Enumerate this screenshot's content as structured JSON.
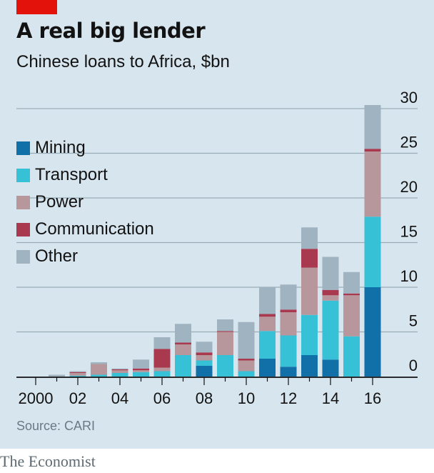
{
  "header": {
    "title": "A real big lender",
    "subtitle": "Chinese loans to Africa, $bn"
  },
  "source": "Source: CARI",
  "footer": "The Economist",
  "colors": {
    "background": "#d7e5ee",
    "brand_red": "#e3120b",
    "gridline": "#98adb8"
  },
  "chart_data": {
    "type": "bar",
    "stacked": true,
    "title": "A real big lender",
    "subtitle": "Chinese loans to Africa, $bn",
    "xlabel": "",
    "ylabel": "",
    "ylim": [
      0,
      30
    ],
    "yticks": [
      0,
      5,
      10,
      15,
      20,
      25,
      30
    ],
    "y_axis_side": "right",
    "grid": true,
    "legend_position": "top-left",
    "categories": [
      "2000",
      "2001",
      "2002",
      "2003",
      "2004",
      "2005",
      "2006",
      "2007",
      "2008",
      "2009",
      "2010",
      "2011",
      "2012",
      "2013",
      "2014",
      "2015",
      "2016"
    ],
    "xtick_labels": [
      {
        "category": "2000",
        "label": "2000"
      },
      {
        "category": "2002",
        "label": "02"
      },
      {
        "category": "2004",
        "label": "04"
      },
      {
        "category": "2006",
        "label": "06"
      },
      {
        "category": "2008",
        "label": "08"
      },
      {
        "category": "2010",
        "label": "10"
      },
      {
        "category": "2012",
        "label": "12"
      },
      {
        "category": "2014",
        "label": "14"
      },
      {
        "category": "2016",
        "label": "16"
      }
    ],
    "series": [
      {
        "name": "Mining",
        "color": "#1270a8",
        "values": [
          0,
          0,
          0,
          0,
          0,
          0,
          0,
          0,
          1.2,
          0,
          0,
          2.0,
          1.1,
          2.4,
          1.9,
          0,
          10.0
        ]
      },
      {
        "name": "Transport",
        "color": "#36c1d6",
        "values": [
          0,
          0,
          0.1,
          0.2,
          0.4,
          0.5,
          0.6,
          2.4,
          0.6,
          2.4,
          0.6,
          3.1,
          3.5,
          4.5,
          6.6,
          4.5,
          7.9
        ]
      },
      {
        "name": "Power",
        "color": "#b7969c",
        "values": [
          0,
          0,
          0.3,
          1.2,
          0.3,
          0.2,
          0.4,
          1.2,
          0.6,
          2.6,
          1.2,
          1.6,
          2.6,
          5.3,
          0.6,
          4.6,
          7.3
        ]
      },
      {
        "name": "Communication",
        "color": "#a8394e",
        "values": [
          0,
          0,
          0.1,
          0,
          0.1,
          0.2,
          2.1,
          0.2,
          0.3,
          0.1,
          0.2,
          0.3,
          0.3,
          2.1,
          0.6,
          0.2,
          0.3
        ]
      },
      {
        "name": "Other",
        "color": "#9fb4c0",
        "values": [
          0,
          0.2,
          0.1,
          0.2,
          0.1,
          1.0,
          1.3,
          2.1,
          1.2,
          1.3,
          4.1,
          3.0,
          2.8,
          2.4,
          3.7,
          2.4,
          4.9
        ]
      }
    ]
  }
}
